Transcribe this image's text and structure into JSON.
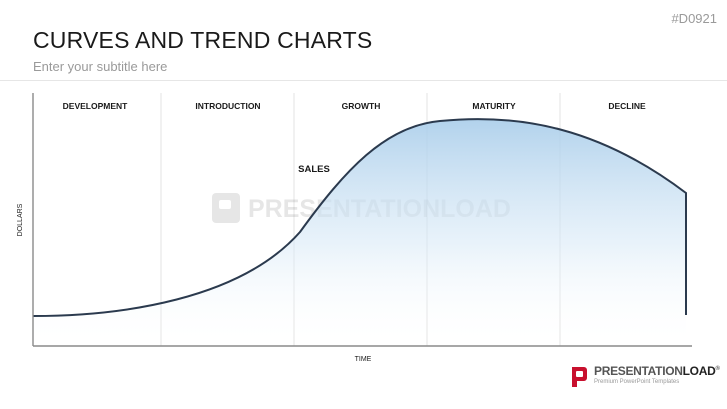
{
  "slide": {
    "id_tag": "#D0921",
    "title": "CURVES AND TREND CHARTS",
    "subtitle": "Enter your subtitle here"
  },
  "diagram": {
    "phases": [
      "DEVELOPMENT",
      "INTRODUCTION",
      "GROWTH",
      "MATURITY",
      "DECLINE"
    ],
    "curve_label": "SALES",
    "x_axis_label": "TIME",
    "y_axis_label": "DOLLARS",
    "watermark": "PRESENTATIONLOAD"
  },
  "brand": {
    "name_prefix": "PRESENTATION",
    "name_suffix": "LOAD",
    "registered": "®",
    "tagline": "Premium PowerPoint Templates"
  },
  "colors": {
    "curve": "#2b3a4e",
    "fill_top": "#a9cdea",
    "axis": "#8a8a8a",
    "phase_divider": "#e3e3e3",
    "brand_mark": "#c8102e"
  }
}
